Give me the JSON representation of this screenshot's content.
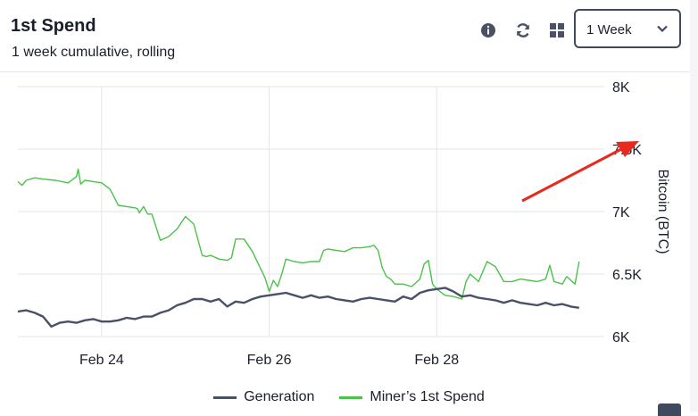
{
  "header": {
    "title": "1st Spend",
    "subtitle": "1 week cumulative, rolling"
  },
  "toolbar": {
    "info_icon": "info-icon",
    "refresh_icon": "refresh-icon",
    "grid_icon": "grid-icon",
    "range_value": "1 Week"
  },
  "legend": {
    "generation": "Generation",
    "first_spend": "Miner’s 1st Spend"
  },
  "colors": {
    "generation": "#4a5166",
    "first_spend": "#4cc24a",
    "annotation_arrow": "#e8291c",
    "grid": "#e3e5ea"
  },
  "chart_data": {
    "type": "line",
    "title": "",
    "xlabel": "",
    "ylabel": "Bitcoin (BTC)",
    "ylim": [
      6000,
      8000
    ],
    "x_range": [
      0,
      7
    ],
    "x_ticks": [
      {
        "x": 1.0,
        "label": "Feb 24"
      },
      {
        "x": 3.0,
        "label": "Feb 26"
      },
      {
        "x": 5.0,
        "label": "Feb 28"
      }
    ],
    "y_ticks": [
      {
        "y": 6000,
        "label": "6K"
      },
      {
        "y": 6500,
        "label": "6.5K"
      },
      {
        "y": 7000,
        "label": "7K"
      },
      {
        "y": 7500,
        "label": "7.5K"
      },
      {
        "y": 8000,
        "label": "8K"
      }
    ],
    "grid": true,
    "series": [
      {
        "name": "Miner’s 1st Spend",
        "x": [
          0.0,
          0.05,
          0.1,
          0.2,
          0.3,
          0.45,
          0.6,
          0.7,
          0.72,
          0.75,
          0.8,
          0.9,
          1.0,
          1.1,
          1.2,
          1.3,
          1.4,
          1.43,
          1.45,
          1.5,
          1.55,
          1.6,
          1.7,
          1.8,
          1.9,
          2.0,
          2.1,
          2.2,
          2.25,
          2.3,
          2.4,
          2.5,
          2.55,
          2.6,
          2.7,
          2.8,
          2.9,
          2.95,
          3.0,
          3.05,
          3.1,
          3.15,
          3.2,
          3.3,
          3.4,
          3.5,
          3.6,
          3.65,
          3.7,
          3.8,
          3.9,
          4.0,
          4.1,
          4.2,
          4.25,
          4.3,
          4.35,
          4.4,
          4.45,
          4.5,
          4.6,
          4.7,
          4.8,
          4.85,
          4.9,
          4.95,
          5.0,
          5.1,
          5.2,
          5.25,
          5.3,
          5.35,
          5.4,
          5.5,
          5.6,
          5.7,
          5.8,
          5.9,
          6.0,
          6.1,
          6.2,
          6.3,
          6.35,
          6.4,
          6.5,
          6.55,
          6.6,
          6.65,
          6.7
        ],
        "values": [
          7240,
          7200,
          7250,
          7270,
          7260,
          7250,
          7230,
          7290,
          7330,
          7230,
          7250,
          7240,
          7210,
          7180,
          7050,
          7040,
          7030,
          7020,
          6990,
          7040,
          6980,
          6980,
          6760,
          6800,
          6860,
          6960,
          6900,
          6640,
          6640,
          6650,
          6620,
          6610,
          6630,
          6780,
          6780,
          6680,
          6540,
          6470,
          6350,
          6450,
          6400,
          6500,
          6620,
          6600,
          6590,
          6600,
          6600,
          6690,
          6700,
          6690,
          6680,
          6710,
          6710,
          6720,
          6730,
          6690,
          6550,
          6480,
          6460,
          6420,
          6420,
          6400,
          6460,
          6580,
          6610,
          6420,
          6380,
          6320,
          6320,
          6310,
          6300,
          6440,
          6500,
          6440,
          6600,
          6560,
          6440,
          6440,
          6460,
          6450,
          6440,
          6460,
          6570,
          6440,
          6420,
          6480,
          6450,
          6420,
          6600
        ],
        "note": "",
        "values_override": [
          7240,
          7210,
          7250,
          7270,
          7260,
          7250,
          7230,
          7280,
          7340,
          7220,
          7250,
          7240,
          7230,
          7180,
          7050,
          7040,
          7030,
          7020,
          6990,
          7040,
          6980,
          6980,
          6770,
          6800,
          6860,
          6960,
          6900,
          6650,
          6640,
          6650,
          6620,
          6610,
          6630,
          6780,
          6780,
          6680,
          6540,
          6470,
          6360,
          6450,
          6400,
          6500,
          6620,
          6600,
          6590,
          6600,
          6600,
          6690,
          6700,
          6690,
          6680,
          6710,
          6710,
          6720,
          6730,
          6690,
          6550,
          6480,
          6460,
          6420,
          6420,
          6400,
          6460,
          6580,
          6610,
          6420,
          6380,
          6330,
          6320,
          6310,
          6300,
          6440,
          6500,
          6440,
          6600,
          6560,
          6440,
          6440,
          6460,
          6450,
          6440,
          6460,
          6570,
          6440,
          6420,
          6480,
          6450,
          6420,
          6600
        ]
      },
      {
        "name": "Generation",
        "x": [
          0.0,
          0.1,
          0.2,
          0.3,
          0.4,
          0.5,
          0.6,
          0.7,
          0.8,
          0.9,
          1.0,
          1.1,
          1.2,
          1.3,
          1.4,
          1.5,
          1.6,
          1.7,
          1.8,
          1.9,
          2.0,
          2.1,
          2.2,
          2.3,
          2.4,
          2.5,
          2.6,
          2.7,
          2.8,
          2.9,
          3.0,
          3.1,
          3.2,
          3.3,
          3.4,
          3.5,
          3.6,
          3.7,
          3.8,
          3.9,
          4.0,
          4.1,
          4.2,
          4.3,
          4.4,
          4.5,
          4.6,
          4.7,
          4.8,
          4.9,
          5.0,
          5.1,
          5.2,
          5.3,
          5.4,
          5.5,
          5.6,
          5.7,
          5.8,
          5.9,
          6.0,
          6.1,
          6.2,
          6.3,
          6.4,
          6.5,
          6.6,
          6.7
        ],
        "values": [
          6200,
          6210,
          6190,
          6160,
          6080,
          6110,
          6120,
          6110,
          6130,
          6140,
          6120,
          6120,
          6130,
          6150,
          6140,
          6160,
          6160,
          6190,
          6210,
          6250,
          6270,
          6300,
          6300,
          6280,
          6300,
          6240,
          6280,
          6270,
          6300,
          6320,
          6330,
          6340,
          6350,
          6330,
          6310,
          6330,
          6310,
          6320,
          6300,
          6290,
          6280,
          6300,
          6310,
          6300,
          6290,
          6280,
          6320,
          6300,
          6350,
          6370,
          6380,
          6390,
          6360,
          6320,
          6330,
          6310,
          6300,
          6290,
          6270,
          6290,
          6270,
          6260,
          6250,
          6270,
          6250,
          6260,
          6240,
          6230
        ]
      }
    ]
  }
}
